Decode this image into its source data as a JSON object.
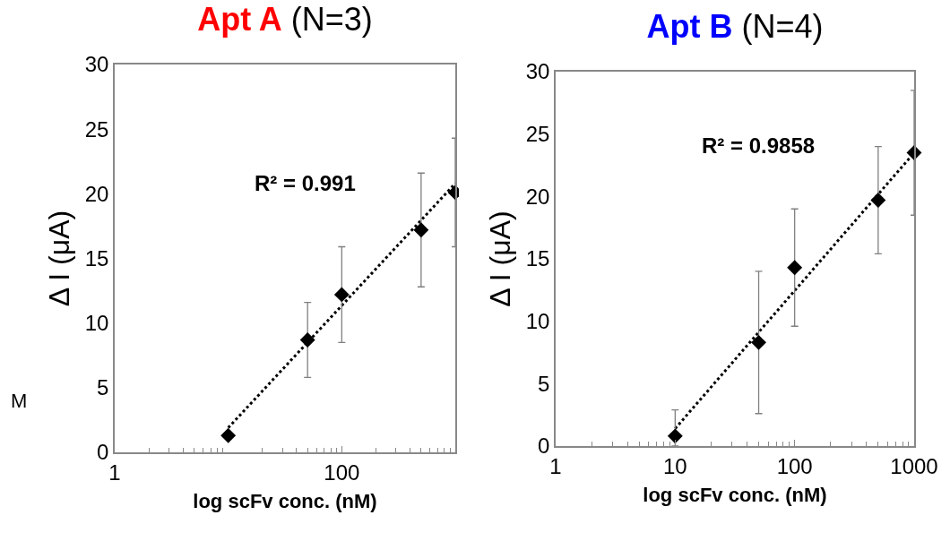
{
  "chart_data": [
    {
      "type": "scatter",
      "title": "Apt A",
      "subtitle": "(N=3)",
      "xlabel": "log scFv conc. (nM)",
      "ylabel": "Δ I (μA)",
      "log": "x",
      "xlim": [
        1,
        1000
      ],
      "xticks": [
        1,
        100
      ],
      "ylim": [
        0,
        30
      ],
      "yticks": [
        0,
        5,
        10,
        15,
        20,
        25,
        30
      ],
      "grid": false,
      "marker": "diamond",
      "annotations": [
        "R² = 0.991",
        "M"
      ],
      "series": [
        {
          "x": [
            10,
            50,
            100,
            500,
            1000
          ],
          "values": [
            1.3,
            8.7,
            12.2,
            17.2,
            20.1
          ],
          "errors": [
            null,
            2.9,
            3.7,
            4.4,
            4.2
          ],
          "color": "#000000"
        },
        {
          "type": "line",
          "x": [
            10,
            1000
          ],
          "values": [
            1.9,
            20.8
          ],
          "color": "#000000",
          "line_style": "dotted",
          "marker": "none"
        }
      ]
    },
    {
      "type": "scatter",
      "title": "Apt B",
      "subtitle": "(N=4)",
      "xlabel": "log scFv conc. (nM)",
      "ylabel": "Δ I (μA)",
      "log": "x",
      "xlim": [
        1,
        1000
      ],
      "xticks": [
        1,
        10,
        100,
        1000
      ],
      "ylim": [
        0,
        30
      ],
      "yticks": [
        0,
        5,
        10,
        15,
        20,
        25,
        30
      ],
      "grid": false,
      "marker": "diamond",
      "annotations": [
        "R² = 0.9858"
      ],
      "series": [
        {
          "x": [
            10,
            50,
            100,
            500,
            1000
          ],
          "values": [
            0.8,
            8.3,
            14.3,
            19.7,
            23.5
          ],
          "errors": [
            [
              0,
              2.9
            ],
            5.7,
            4.7,
            4.3,
            5
          ],
          "color": "#000000"
        },
        {
          "type": "line",
          "x": [
            10,
            1000
          ],
          "values": [
            1.4,
            23.5
          ],
          "color": "#000000",
          "line_style": "dotted",
          "marker": "none"
        }
      ]
    }
  ]
}
